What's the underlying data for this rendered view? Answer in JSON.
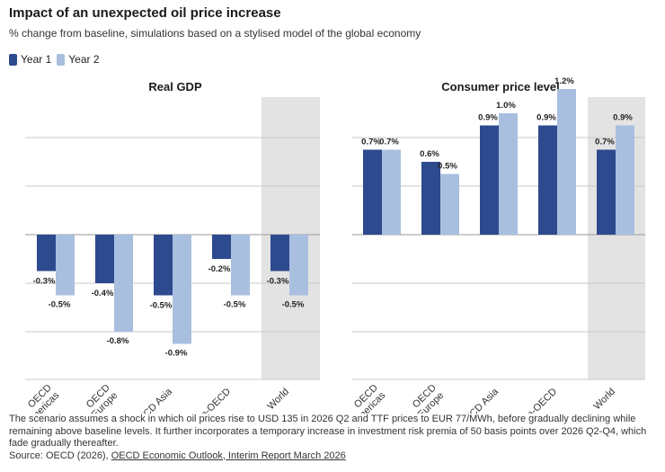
{
  "header": {
    "title": "Impact of an unexpected oil price increase",
    "subtitle": "% change from baseline, simulations based on a stylised model of the global economy"
  },
  "colors": {
    "year1": "#2e4a8e",
    "year2": "#a9bfe0",
    "highlight": "#e3e3e3",
    "grid": "#c8c8c8"
  },
  "chart_data": [
    {
      "type": "bar",
      "title": "Real GDP",
      "categories": [
        "OECD\nAmericas",
        "OECD\nEurope",
        "OECD Asia",
        "Non-OECD",
        "World"
      ],
      "series": [
        {
          "name": "Year 1",
          "values": [
            -0.3,
            -0.4,
            -0.5,
            -0.2,
            -0.3
          ]
        },
        {
          "name": "Year 2",
          "values": [
            -0.5,
            -0.8,
            -0.9,
            -0.5,
            -0.5
          ]
        }
      ],
      "data_labels": [
        [
          "-0.3%",
          "-0.4%",
          "-0.5%",
          "-0.2%",
          "-0.3%"
        ],
        [
          "-0.5%",
          "-0.8%",
          "-0.9%",
          "-0.5%",
          "-0.5%"
        ]
      ],
      "ylim": [
        -1.0,
        0.9
      ],
      "highlight_category": "World",
      "grid": true
    },
    {
      "type": "bar",
      "title": "Consumer price level",
      "categories": [
        "OECD\nAmericas",
        "OECD\nEurope",
        "OECD Asia",
        "Non-OECD",
        "World"
      ],
      "series": [
        {
          "name": "Year 1",
          "values": [
            0.7,
            0.6,
            0.9,
            0.9,
            0.7
          ]
        },
        {
          "name": "Year 2",
          "values": [
            0.7,
            0.5,
            1.0,
            1.2,
            0.9
          ]
        }
      ],
      "data_labels": [
        [
          "0.7%",
          "0.6%",
          "0.9%",
          "0.9%",
          "0.7%"
        ],
        [
          "0.7%",
          "0.5%",
          "1.0%",
          "1.2%",
          "0.9%"
        ]
      ],
      "ylim": [
        -1.0,
        1.4
      ],
      "highlight_category": "World",
      "grid": true
    }
  ],
  "legend": {
    "year1": "Year 1",
    "year2": "Year 2"
  },
  "notes": {
    "scenario": "The scenario assumes a shock in which oil prices rise to USD 135 in 2026 Q2 and TTF prices to EUR 77/MWh, before gradually declining while remaining above baseline levels. It further incorporates a temporary increase in investment risk premia of 50 basis points over 2026 Q2-Q4, which fade gradually thereafter.",
    "source_prefix": "Source: OECD (2026), ",
    "source_link": "OECD Economic Outlook, Interim Report March 2026"
  }
}
